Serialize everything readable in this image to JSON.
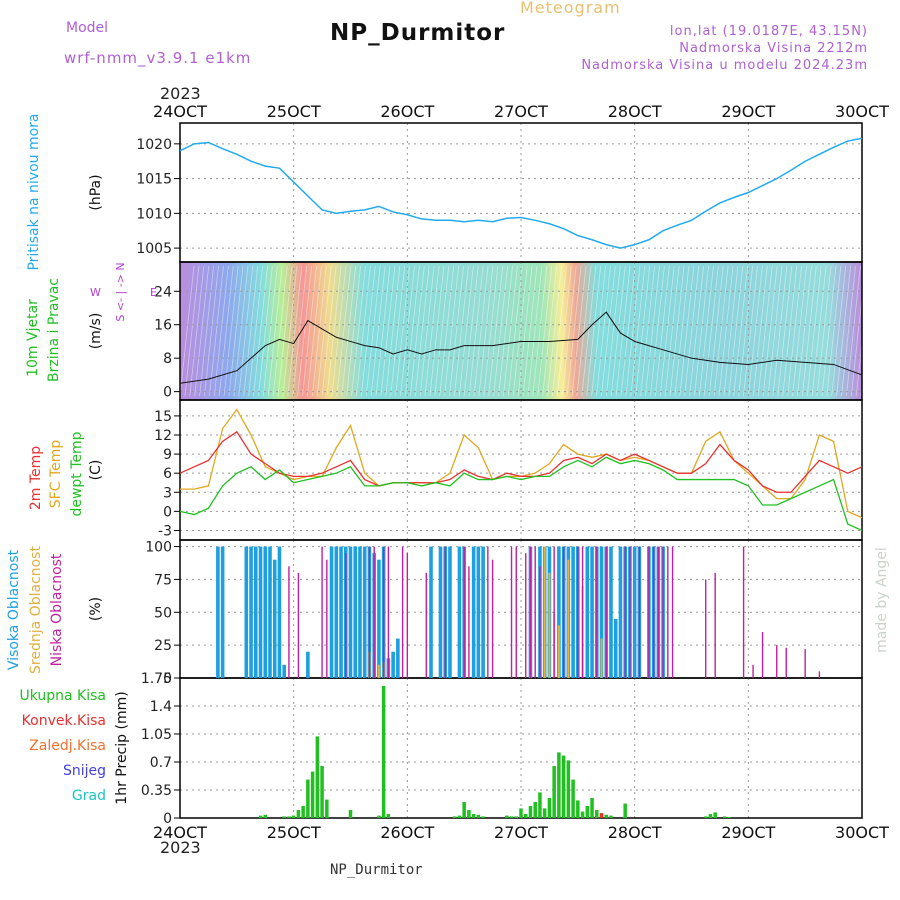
{
  "header": {
    "title": "NP_Durmitor",
    "subtitle": "Meteogram",
    "model_label": "Model",
    "model_value": "wrf-nmm_v3.9.1  e1km",
    "location": "lon,lat (19.0187E, 43.15N)",
    "altitude": "Nadmorska Visina 2212m",
    "model_altitude": "Nadmorska Visina u modelu 2024.23m"
  },
  "footer": {
    "station": "NP_Durmitor",
    "credit": "made by Angel"
  },
  "x_axis": {
    "year": "2023",
    "ticks": [
      "24OCT",
      "25OCT",
      "26OCT",
      "27OCT",
      "28OCT",
      "29OCT",
      "30OCT"
    ]
  },
  "colors": {
    "pressure": "#22aaee",
    "temp2m": "#e83030",
    "sfc": "#e0a820",
    "dewpt": "#20c020",
    "high_cloud": "#1ea0e0",
    "mid_cloud": "#e0b040",
    "low_cloud": "#c020a0",
    "precip": "#20c020"
  },
  "chart_data": [
    {
      "type": "line",
      "panel": "pressure",
      "ylabel_left": "Pritisak na nivou mora",
      "ylabel_unit": "(hPa)",
      "yticks": [
        1005,
        1010,
        1015,
        1020
      ],
      "ylim": [
        1003,
        1023
      ],
      "xlim": [
        0,
        144
      ],
      "series": [
        {
          "name": "Pritisak na nivou mora",
          "x": [
            0,
            3,
            6,
            9,
            12,
            15,
            18,
            21,
            24,
            27,
            30,
            33,
            36,
            39,
            42,
            45,
            48,
            51,
            54,
            57,
            60,
            63,
            66,
            69,
            72,
            75,
            78,
            81,
            84,
            87,
            90,
            93,
            96,
            99,
            102,
            105,
            108,
            111,
            114,
            117,
            120,
            123,
            126,
            129,
            132,
            135,
            138,
            141,
            144
          ],
          "y": [
            1019,
            1020,
            1020.2,
            1019.3,
            1018.5,
            1017.5,
            1016.8,
            1016.5,
            1014.5,
            1012.5,
            1010.5,
            1010,
            1010.3,
            1010.5,
            1011,
            1010.2,
            1009.8,
            1009.2,
            1009,
            1009,
            1008.8,
            1009,
            1008.8,
            1009.3,
            1009.4,
            1009,
            1008.5,
            1007.8,
            1006.8,
            1006.2,
            1005.5,
            1005,
            1005.5,
            1006.2,
            1007.5,
            1008.3,
            1009,
            1010.3,
            1011.5,
            1012.3,
            1013,
            1014,
            1015,
            1016.2,
            1017.5,
            1018.5,
            1019.5,
            1020.4,
            1020.8
          ]
        }
      ]
    },
    {
      "type": "line",
      "panel": "wind",
      "ylabel_left": [
        "10m Vjetar",
        "Brzina i Pravac"
      ],
      "ylabel_unit": "(m/s)",
      "compass": [
        "W",
        "<-",
        "|",
        "->",
        "E",
        "S",
        "<-",
        "|",
        "->",
        "N"
      ],
      "yticks": [
        0,
        8,
        16,
        24
      ],
      "ylim": [
        -2,
        31
      ],
      "xlim": [
        0,
        144
      ],
      "series": [
        {
          "name": "speed",
          "x": [
            0,
            6,
            12,
            15,
            18,
            21,
            24,
            27,
            30,
            33,
            36,
            39,
            42,
            45,
            48,
            51,
            54,
            57,
            60,
            66,
            72,
            78,
            84,
            87,
            90,
            93,
            96,
            102,
            108,
            114,
            120,
            126,
            132,
            138,
            144
          ],
          "y": [
            2,
            3,
            5,
            8,
            11,
            12.5,
            11.5,
            17,
            15,
            13,
            12,
            11,
            10.5,
            9,
            10,
            9,
            10,
            10,
            11,
            11,
            12,
            12,
            12.5,
            16,
            19,
            14,
            12,
            10,
            8,
            7,
            6.5,
            7.5,
            7,
            6.5,
            4
          ]
        }
      ]
    },
    {
      "type": "line",
      "panel": "temperature",
      "ylabel_left": [
        "2m Temp",
        "SFC Temp",
        "dewpt Temp"
      ],
      "ylabel_unit": "(C)",
      "yticks": [
        -3,
        0,
        3,
        6,
        9,
        12,
        15
      ],
      "ylim": [
        -4.5,
        17.5
      ],
      "xlim": [
        0,
        144
      ],
      "series": [
        {
          "name": "2m Temp",
          "x": [
            0,
            3,
            6,
            9,
            12,
            15,
            18,
            21,
            24,
            27,
            30,
            33,
            36,
            39,
            42,
            45,
            48,
            51,
            54,
            57,
            60,
            63,
            66,
            69,
            72,
            75,
            78,
            81,
            84,
            87,
            90,
            93,
            96,
            99,
            102,
            105,
            108,
            111,
            114,
            117,
            120,
            123,
            126,
            129,
            132,
            135,
            138,
            141,
            144
          ],
          "y": [
            6,
            7,
            8,
            11,
            12.5,
            9,
            7.5,
            6,
            5.5,
            5.5,
            6,
            7,
            8,
            5,
            4,
            4.5,
            4.5,
            4.5,
            4.5,
            5,
            6.5,
            5.5,
            5,
            6,
            5.5,
            5.5,
            6,
            8,
            8.5,
            7.5,
            9,
            8,
            9,
            8,
            7,
            6,
            6,
            7.5,
            10.5,
            8,
            6.5,
            4,
            3,
            3,
            5.5,
            8,
            7,
            6,
            7
          ]
        },
        {
          "name": "SFC Temp",
          "x": [
            0,
            3,
            6,
            9,
            12,
            15,
            18,
            21,
            24,
            27,
            30,
            33,
            36,
            39,
            42,
            45,
            48,
            51,
            54,
            57,
            60,
            63,
            66,
            69,
            72,
            75,
            78,
            81,
            84,
            87,
            90,
            93,
            96,
            99,
            102,
            105,
            108,
            111,
            114,
            117,
            120,
            123,
            126,
            129,
            132,
            135,
            138,
            141,
            144
          ],
          "y": [
            3.5,
            3.5,
            4,
            13,
            16,
            12,
            7,
            6,
            5,
            5.5,
            5.5,
            10,
            13.5,
            6,
            4,
            4.5,
            4.5,
            4.5,
            4.5,
            6,
            12,
            10,
            5,
            5.5,
            5.5,
            6,
            7.5,
            10.5,
            9,
            8.5,
            9,
            8,
            8.5,
            8,
            7,
            6,
            6,
            11,
            12.5,
            8,
            6,
            4,
            2,
            2,
            5,
            12,
            11,
            0,
            -1
          ]
        },
        {
          "name": "dewpt Temp",
          "x": [
            0,
            3,
            6,
            9,
            12,
            15,
            18,
            21,
            24,
            27,
            30,
            33,
            36,
            39,
            42,
            45,
            48,
            51,
            54,
            57,
            60,
            63,
            66,
            69,
            72,
            75,
            78,
            81,
            84,
            87,
            90,
            93,
            96,
            99,
            102,
            105,
            108,
            111,
            114,
            117,
            120,
            123,
            126,
            129,
            132,
            135,
            138,
            141,
            144
          ],
          "y": [
            0,
            -0.5,
            0.5,
            4,
            6,
            7,
            5,
            6.5,
            4.5,
            5,
            5.5,
            6,
            7,
            4,
            4,
            4.5,
            4.5,
            4,
            4.5,
            4,
            6,
            5,
            5,
            5.5,
            5,
            5.5,
            5.5,
            7,
            8,
            7,
            8.5,
            7.5,
            8,
            7.5,
            6.5,
            5,
            5,
            5,
            5,
            5,
            4,
            1,
            1,
            2,
            3,
            4,
            5,
            -2,
            -3
          ]
        }
      ]
    },
    {
      "type": "bar",
      "panel": "cloud",
      "ylabel_left": [
        "Visoka Oblacnost",
        "Srednja Oblacnost",
        "Niska Oblacnost"
      ],
      "ylabel_unit": "(%)",
      "yticks": [
        0,
        25,
        50,
        75,
        100
      ],
      "ylim": [
        0,
        105
      ],
      "xlim": [
        0,
        144
      ],
      "series": [
        {
          "name": "Visoka Oblacnost",
          "x": [
            8,
            9,
            14,
            15,
            16,
            17,
            18,
            19,
            20,
            21,
            22,
            27,
            32,
            33,
            34,
            35,
            36,
            37,
            38,
            39,
            40,
            41,
            42,
            43,
            44,
            45,
            46,
            53,
            55,
            56,
            57,
            59,
            60,
            62,
            63,
            64,
            74,
            76,
            77,
            78,
            80,
            81,
            82,
            83,
            84,
            86,
            87,
            88,
            89,
            90,
            91,
            92,
            93,
            94,
            95,
            96,
            97,
            99,
            100,
            101,
            102
          ],
          "y": [
            100,
            100,
            100,
            100,
            100,
            100,
            100,
            100,
            90,
            100,
            10,
            20,
            100,
            100,
            100,
            100,
            100,
            100,
            100,
            100,
            100,
            95,
            90,
            100,
            15,
            20,
            30,
            100,
            100,
            100,
            100,
            100,
            100,
            100,
            100,
            100,
            100,
            100,
            100,
            100,
            100,
            100,
            100,
            100,
            100,
            100,
            100,
            100,
            100,
            100,
            100,
            45,
            100,
            100,
            100,
            100,
            100,
            100,
            100,
            100,
            100
          ]
        },
        {
          "name": "Srednja Oblacnost",
          "x": [
            40,
            42,
            43,
            77,
            78,
            79,
            80,
            82,
            85,
            89
          ],
          "y": [
            20,
            10,
            12,
            100,
            80,
            50,
            40,
            90,
            70,
            30
          ]
        },
        {
          "name": "Niska Oblacnost",
          "x": [
            23,
            25,
            30,
            31,
            35,
            40,
            41,
            43,
            44,
            47,
            48,
            52,
            56,
            60,
            61,
            65,
            66,
            70,
            71,
            73,
            74,
            75,
            76,
            79,
            81,
            84,
            85,
            88,
            90,
            94,
            95,
            97,
            99,
            100,
            101,
            102,
            103,
            104,
            111,
            113,
            119,
            121,
            123,
            126,
            128,
            132,
            135
          ],
          "y": [
            85,
            80,
            100,
            90,
            95,
            100,
            100,
            100,
            100,
            100,
            95,
            80,
            100,
            100,
            85,
            100,
            90,
            100,
            100,
            95,
            100,
            100,
            85,
            100,
            100,
            100,
            100,
            100,
            100,
            100,
            100,
            100,
            100,
            100,
            100,
            100,
            100,
            100,
            75,
            80,
            100,
            10,
            35,
            25,
            23,
            22,
            5
          ]
        }
      ]
    },
    {
      "type": "bar",
      "panel": "precip",
      "ylabel_left": [
        "Ukupna Kisa",
        "Konvek.Kisa",
        "Zaledj.Kisa",
        "Snijeg",
        "Grad"
      ],
      "ylabel_unit": "1hr Precip (mm)",
      "yticks": [
        0,
        0.35,
        0.7,
        1.05,
        1.4,
        1.75
      ],
      "ylim": [
        0,
        1.75
      ],
      "xlim": [
        0,
        144
      ],
      "series": [
        {
          "name": "Ukupna Kisa",
          "x": [
            17,
            18,
            22,
            23,
            24,
            25,
            26,
            27,
            28,
            29,
            30,
            31,
            36,
            42,
            43,
            44,
            58,
            59,
            60,
            61,
            62,
            63,
            64,
            69,
            70,
            71,
            72,
            73,
            74,
            75,
            76,
            77,
            78,
            79,
            80,
            81,
            82,
            83,
            84,
            85,
            86,
            87,
            88,
            89,
            90,
            91,
            94,
            111,
            112,
            113,
            115,
            116
          ],
          "y": [
            0.03,
            0.04,
            0.02,
            0.02,
            0.03,
            0.1,
            0.15,
            0.48,
            0.58,
            1.02,
            0.65,
            0.23,
            0.1,
            0.03,
            1.65,
            0.05,
            0.02,
            0.03,
            0.2,
            0.1,
            0.05,
            0.04,
            0.02,
            0.03,
            0.02,
            0.02,
            0.12,
            0.05,
            0.15,
            0.2,
            0.32,
            0.12,
            0.25,
            0.65,
            0.82,
            0.78,
            0.72,
            0.48,
            0.22,
            0.08,
            0.15,
            0.25,
            0.1,
            0.06,
            0.04,
            0.03,
            0.18,
            0.02,
            0.05,
            0.07,
            0.02,
            0.01
          ]
        },
        {
          "name": "Konvek.Kisa",
          "x": [
            89
          ],
          "y": [
            0.06
          ]
        }
      ]
    }
  ]
}
